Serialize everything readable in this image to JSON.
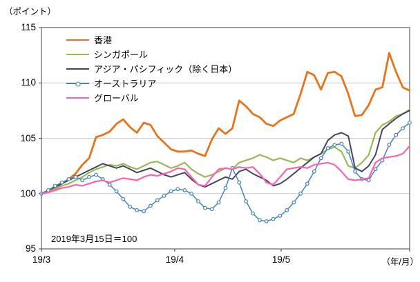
{
  "chart_data": {
    "type": "line",
    "title": "",
    "ylabel": "（ポイント）",
    "xlabel": "（年/月）",
    "note": "2019年3月15日＝100",
    "ylim": [
      95,
      115
    ],
    "yticks": [
      95,
      100,
      105,
      110,
      115
    ],
    "xticks": [
      {
        "label": "19/3",
        "pos": 0.0
      },
      {
        "label": "19/4",
        "pos": 0.362
      },
      {
        "label": "19/5",
        "pos": 0.651
      }
    ],
    "grid": "horizontal",
    "legend_position": "top-left-inside",
    "series": [
      {
        "name": "香港",
        "color": "#E8731A",
        "width": 2.8,
        "marker": false,
        "values": [
          100,
          100.2,
          100.5,
          100.9,
          101.3,
          101.8,
          102.6,
          103.2,
          105.1,
          105.3,
          105.6,
          106.3,
          106.7,
          106.0,
          105.5,
          106.4,
          106.2,
          105.2,
          104.6,
          104.0,
          103.8,
          103.8,
          103.9,
          103.6,
          103.4,
          104.9,
          105.9,
          105.4,
          105.9,
          108.4,
          107.9,
          107.2,
          106.9,
          106.3,
          106.1,
          106.6,
          106.9,
          107.2,
          109.0,
          111.0,
          110.7,
          109.4,
          110.9,
          111.0,
          110.6,
          109.0,
          107.0,
          107.1,
          108.0,
          109.4,
          109.6,
          112.7,
          111.0,
          109.6,
          109.3
        ]
      },
      {
        "name": "シンガポール",
        "color": "#98B954",
        "width": 2.2,
        "marker": false,
        "values": [
          100,
          100.2,
          100.4,
          100.7,
          100.9,
          101.2,
          101.5,
          101.9,
          102.2,
          102.4,
          102.6,
          102.5,
          102.7,
          102.4,
          102.2,
          102.5,
          102.8,
          102.9,
          102.6,
          102.3,
          102.5,
          102.8,
          102.2,
          101.8,
          101.5,
          101.7,
          102.0,
          102.3,
          102.2,
          102.8,
          103.0,
          103.2,
          103.5,
          103.3,
          103.0,
          103.2,
          103.0,
          102.8,
          103.2,
          103.0,
          103.3,
          103.6,
          104.0,
          104.2,
          103.8,
          102.5,
          102.3,
          102.8,
          103.5,
          105.5,
          106.2,
          106.5,
          107.0,
          107.2,
          107.6
        ]
      },
      {
        "name": "アジア・パシフィック（除く日本）",
        "color": "#454467",
        "width": 2.0,
        "marker": false,
        "values": [
          100,
          100.3,
          100.6,
          100.9,
          101.2,
          101.5,
          101.8,
          102.1,
          102.4,
          102.7,
          102.5,
          102.3,
          102.5,
          102.2,
          101.9,
          102.1,
          102.3,
          102.0,
          101.7,
          101.5,
          101.7,
          101.9,
          101.3,
          100.8,
          100.6,
          100.9,
          101.2,
          101.5,
          101.3,
          102.0,
          102.2,
          101.8,
          101.5,
          101.2,
          100.7,
          100.9,
          101.3,
          101.8,
          102.3,
          102.8,
          103.3,
          103.6,
          104.8,
          105.3,
          105.5,
          105.2,
          102.3,
          102.0,
          102.5,
          103.5,
          105.8,
          106.3,
          106.8,
          107.2,
          107.5
        ]
      },
      {
        "name": "オーストラリア",
        "color": "#4283C4",
        "width": 1.5,
        "marker": true,
        "values": [
          100,
          100.3,
          100.7,
          101.0,
          101.3,
          101.5,
          101.2,
          101.5,
          101.7,
          101.3,
          100.8,
          100.2,
          99.5,
          98.8,
          98.5,
          98.4,
          98.9,
          99.4,
          99.8,
          100.2,
          100.4,
          100.3,
          100.0,
          99.3,
          98.7,
          98.6,
          99.2,
          100.5,
          102.3,
          101.0,
          99.3,
          98.2,
          97.6,
          97.5,
          97.7,
          98.0,
          98.5,
          99.2,
          100.0,
          100.9,
          102.0,
          103.2,
          104.1,
          104.4,
          104.5,
          103.8,
          102.0,
          101.3,
          101.2,
          102.2,
          103.0,
          104.4,
          105.3,
          105.9,
          106.4
        ]
      },
      {
        "name": "グローバル",
        "color": "#FF5FAD",
        "width": 2.2,
        "marker": false,
        "values": [
          100,
          100.1,
          100.3,
          100.5,
          100.6,
          100.8,
          100.7,
          100.9,
          101.1,
          101.2,
          101.0,
          101.2,
          101.4,
          101.3,
          101.2,
          101.5,
          101.7,
          101.6,
          101.8,
          102.0,
          102.3,
          102.2,
          101.5,
          100.8,
          100.7,
          101.5,
          102.2,
          102.3,
          102.2,
          102.4,
          102.3,
          102.4,
          101.8,
          101.0,
          100.8,
          101.5,
          102.2,
          102.3,
          102.4,
          102.3,
          102.6,
          102.7,
          102.8,
          102.6,
          102.0,
          101.3,
          101.2,
          101.3,
          101.4,
          102.8,
          103.2,
          103.3,
          103.4,
          103.6,
          104.3
        ]
      }
    ]
  }
}
